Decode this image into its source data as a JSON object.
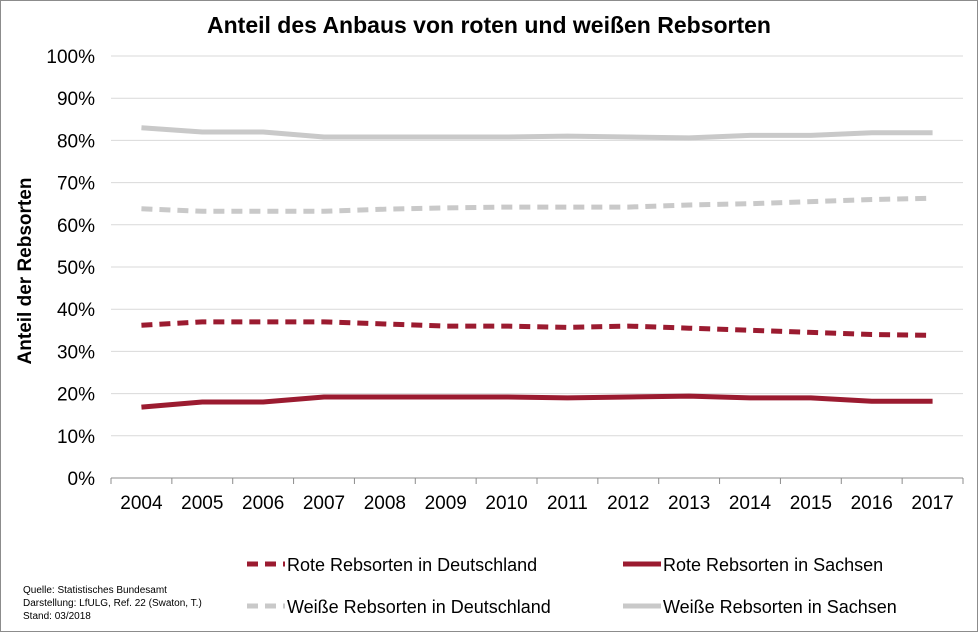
{
  "chart_data": {
    "type": "line",
    "title": "Anteil des Anbaus von roten und weißen Rebsorten",
    "ylabel": "Anteil der Rebsorten",
    "xlabel": "",
    "x": [
      "2004",
      "2005",
      "2006",
      "2007",
      "2008",
      "2009",
      "2010",
      "2011",
      "2012",
      "2013",
      "2014",
      "2015",
      "2016",
      "2017"
    ],
    "ylim": [
      0,
      100
    ],
    "yticks": [
      "0%",
      "10%",
      "20%",
      "30%",
      "40%",
      "50%",
      "60%",
      "70%",
      "80%",
      "90%",
      "100%"
    ],
    "grid": true,
    "legend_position": "bottom",
    "series": [
      {
        "name": "Rote Rebsorten in Deutschland",
        "color": "#9b1b30",
        "dash": true,
        "values": [
          36.2,
          37.0,
          37.0,
          37.0,
          36.5,
          36.0,
          36.0,
          35.7,
          36.0,
          35.5,
          35.0,
          34.5,
          34.0,
          33.8
        ]
      },
      {
        "name": "Rote Rebsorten in Sachsen",
        "color": "#9b1b30",
        "dash": false,
        "values": [
          16.8,
          18.0,
          18.0,
          19.2,
          19.2,
          19.2,
          19.2,
          19.0,
          19.2,
          19.4,
          19.0,
          19.0,
          18.2,
          18.2
        ]
      },
      {
        "name": "Weiße Rebsorten in Deutschland",
        "color": "#c9c9c9",
        "dash": true,
        "values": [
          63.8,
          63.2,
          63.2,
          63.2,
          63.7,
          64.0,
          64.2,
          64.2,
          64.2,
          64.7,
          65.0,
          65.5,
          66.0,
          66.3
        ]
      },
      {
        "name": "Weiße Rebsorten in Sachsen",
        "color": "#c9c9c9",
        "dash": false,
        "values": [
          83.0,
          82.0,
          82.0,
          80.8,
          80.8,
          80.8,
          80.8,
          81.0,
          80.8,
          80.6,
          81.2,
          81.2,
          81.8,
          81.8
        ]
      }
    ]
  },
  "source": {
    "line1": "Quelle:  Statistisches Bundesamt",
    "line2": "Darstellung: LfULG, Ref. 22 (Swaton, T.)",
    "line3": "Stand: 03/2018"
  }
}
